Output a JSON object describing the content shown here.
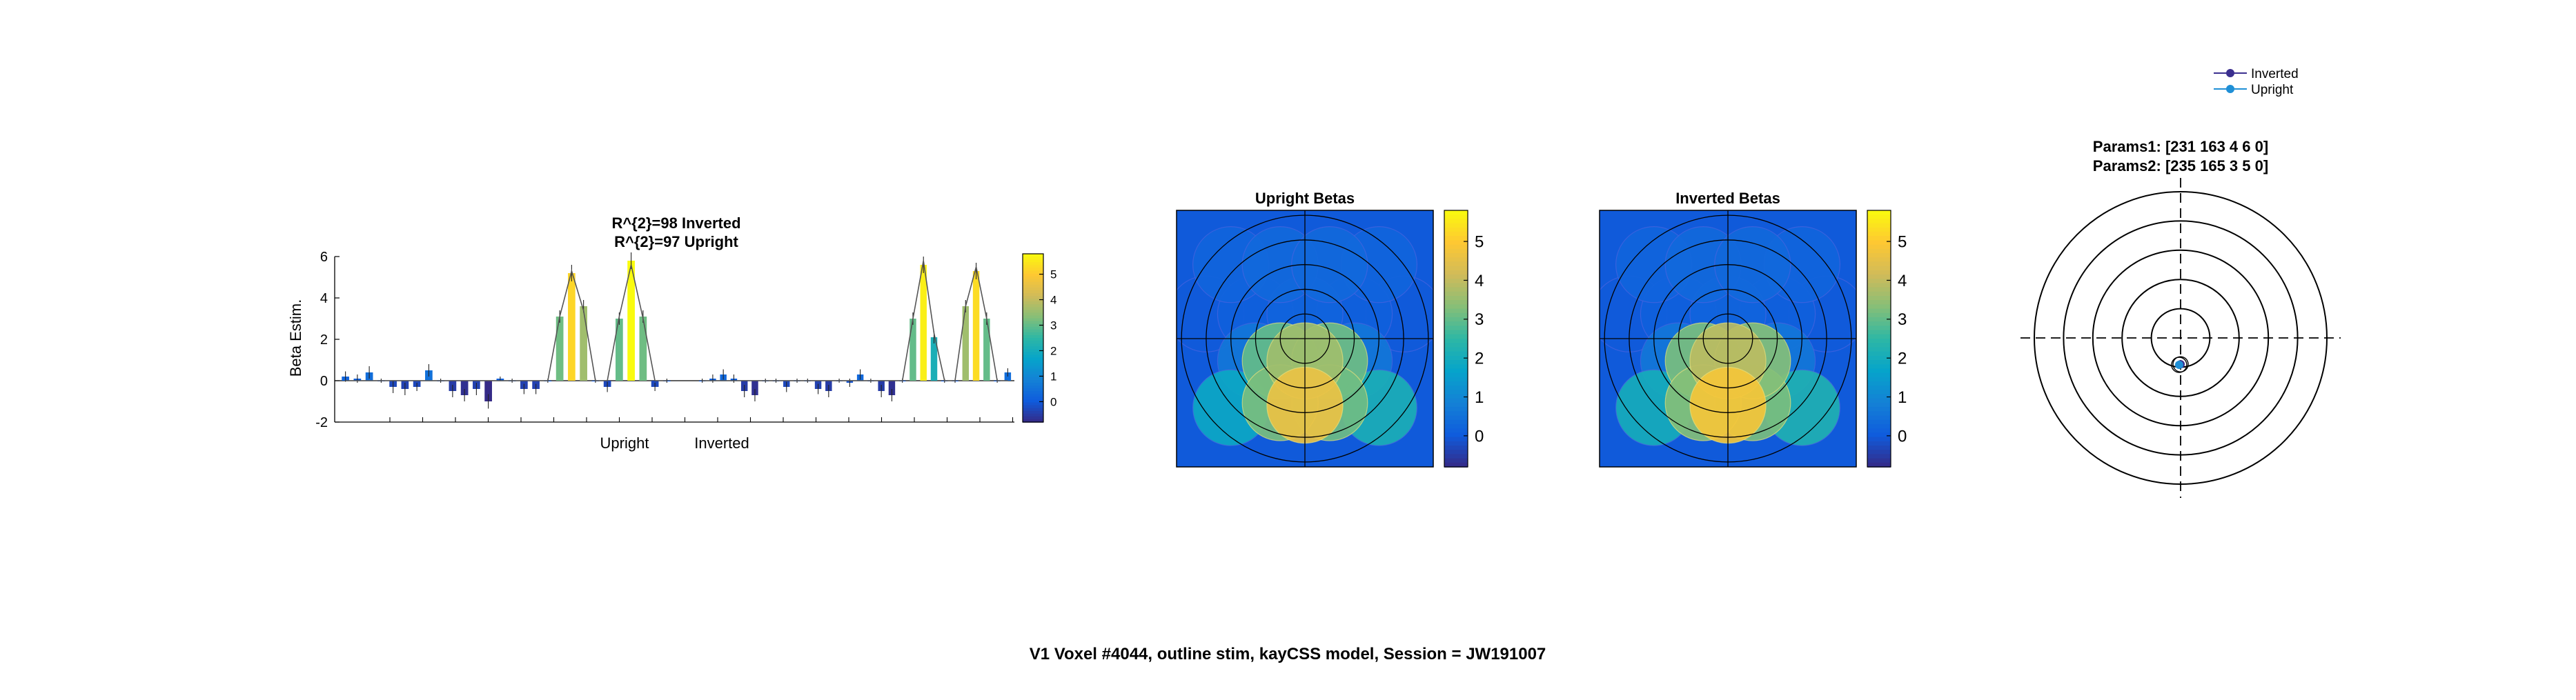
{
  "figure_title": "V1 Voxel #4044, outline stim, kayCSS model, Session = JW191007",
  "colors": {
    "background": "#ffffff",
    "inverted_marker": "#3b2f8f",
    "upright_marker": "#1f8fd6",
    "model_line": "#555555",
    "axis": "#000000"
  },
  "colormap": {
    "name": "parula",
    "stops": [
      "#352a87",
      "#0f5cdd",
      "#1481d6",
      "#06a4ca",
      "#2eb7a4",
      "#87bf77",
      "#d1bb59",
      "#fec832",
      "#f9fb0e"
    ]
  },
  "chart_data": [
    {
      "id": "beta-bars",
      "type": "bar",
      "title_lines": [
        "R^{2}=98 Inverted",
        "R^{2}=97 Upright"
      ],
      "xlabel_groups": [
        "Upright",
        "Inverted"
      ],
      "ylabel": "Beta Estim.",
      "ylim": [
        -2,
        6
      ],
      "yticks": [
        -2,
        0,
        2,
        4,
        6
      ],
      "colorbar_ticks": [
        0,
        1,
        2,
        3,
        4,
        5
      ],
      "colorbar_range": [
        -0.8,
        5.8
      ],
      "series": [
        {
          "name": "Upright",
          "values": [
            0.2,
            0.1,
            0.4,
            0.0,
            -0.3,
            -0.4,
            -0.3,
            0.5,
            0.0,
            -0.5,
            -0.7,
            -0.4,
            -1.0,
            0.1,
            0.0,
            -0.4,
            -0.4,
            0.0,
            3.1,
            5.2,
            3.6,
            0.0,
            -0.3,
            3.0,
            5.8,
            3.1,
            -0.3,
            0.0
          ],
          "error": [
            0.25,
            0.2,
            0.3,
            0.1,
            0.3,
            0.3,
            0.2,
            0.3,
            0.1,
            0.3,
            0.3,
            0.3,
            0.35,
            0.1,
            0.1,
            0.25,
            0.25,
            0.1,
            0.3,
            0.4,
            0.3,
            0.1,
            0.25,
            0.3,
            0.4,
            0.3,
            0.2,
            0.1
          ],
          "model": [
            0.0,
            0.0,
            0.0,
            0.0,
            0.0,
            0.0,
            0.0,
            0.0,
            0.0,
            0.0,
            0.0,
            0.0,
            0.0,
            0.0,
            0.0,
            0.0,
            0.0,
            0.0,
            3.1,
            5.3,
            3.4,
            0.0,
            0.0,
            3.1,
            5.6,
            3.0,
            0.0,
            0.0
          ]
        },
        {
          "name": "Inverted",
          "values": [
            0.0,
            0.1,
            0.3,
            0.1,
            -0.5,
            -0.7,
            0.0,
            0.0,
            -0.3,
            0.0,
            0.0,
            -0.4,
            -0.5,
            0.0,
            -0.1,
            0.3,
            0.0,
            -0.5,
            -0.7,
            0.0,
            3.0,
            5.6,
            2.1,
            0.0,
            0.0,
            3.6,
            5.3,
            3.0,
            0.0,
            0.4
          ],
          "error": [
            0.1,
            0.2,
            0.25,
            0.2,
            0.3,
            0.3,
            0.1,
            0.1,
            0.25,
            0.1,
            0.1,
            0.25,
            0.3,
            0.1,
            0.2,
            0.25,
            0.1,
            0.3,
            0.3,
            0.1,
            0.3,
            0.4,
            0.3,
            0.1,
            0.1,
            0.3,
            0.4,
            0.3,
            0.1,
            0.2
          ],
          "model": [
            0.0,
            0.0,
            0.0,
            0.0,
            0.0,
            0.0,
            0.0,
            0.0,
            0.0,
            0.0,
            0.0,
            0.0,
            0.0,
            0.0,
            0.0,
            0.0,
            0.0,
            0.0,
            0.0,
            0.0,
            3.0,
            5.8,
            2.3,
            0.0,
            0.0,
            3.6,
            5.5,
            3.0,
            0.0,
            0.0
          ]
        }
      ]
    },
    {
      "id": "upright-betas",
      "type": "heatmap",
      "title": "Upright Betas",
      "colorbar_ticks": [
        0,
        1,
        2,
        3,
        4,
        5
      ],
      "colorbar_range": [
        -0.8,
        5.8
      ],
      "background_value": 0.0,
      "disks": [
        {
          "col": -1.5,
          "row": -1.5,
          "value": 0.2
        },
        {
          "col": -0.5,
          "row": -1.5,
          "value": 0.3
        },
        {
          "col": 0.5,
          "row": -1.5,
          "value": 0.3
        },
        {
          "col": 1.5,
          "row": -1.5,
          "value": 0.2
        },
        {
          "col": -2.0,
          "row": -0.5,
          "value": 0.0
        },
        {
          "col": -1.0,
          "row": -0.5,
          "value": 0.1
        },
        {
          "col": 0.0,
          "row": -0.5,
          "value": 0.2
        },
        {
          "col": 1.0,
          "row": -0.5,
          "value": 0.1
        },
        {
          "col": 2.0,
          "row": -0.5,
          "value": 0.0
        },
        {
          "col": -1.0,
          "row": 0.45,
          "value": 0.6
        },
        {
          "col": 1.0,
          "row": 0.45,
          "value": 0.6
        },
        {
          "col": -1.5,
          "row": 1.4,
          "value": 1.8
        },
        {
          "col": 1.5,
          "row": 1.4,
          "value": 2.1
        },
        {
          "col": -0.5,
          "row": 0.45,
          "value": 3.0
        },
        {
          "col": 0.5,
          "row": 0.45,
          "value": 3.1
        },
        {
          "col": 0.0,
          "row": 0.45,
          "value": 3.6
        },
        {
          "col": -0.5,
          "row": 1.3,
          "value": 3.2
        },
        {
          "col": 0.5,
          "row": 1.3,
          "value": 3.1
        },
        {
          "col": 0.0,
          "row": 1.35,
          "value": 4.6
        }
      ]
    },
    {
      "id": "inverted-betas",
      "type": "heatmap",
      "title": "Inverted Betas",
      "colorbar_ticks": [
        0,
        1,
        2,
        3,
        4,
        5
      ],
      "colorbar_range": [
        -0.8,
        5.8
      ],
      "background_value": 0.0,
      "disks": [
        {
          "col": -1.5,
          "row": -1.5,
          "value": 0.2
        },
        {
          "col": -0.5,
          "row": -1.5,
          "value": 0.3
        },
        {
          "col": 0.5,
          "row": -1.5,
          "value": 0.3
        },
        {
          "col": 1.5,
          "row": -1.5,
          "value": 0.2
        },
        {
          "col": -2.0,
          "row": -0.5,
          "value": 0.0
        },
        {
          "col": -1.0,
          "row": -0.5,
          "value": 0.1
        },
        {
          "col": 0.0,
          "row": -0.5,
          "value": 0.2
        },
        {
          "col": 1.0,
          "row": -0.5,
          "value": 0.1
        },
        {
          "col": 2.0,
          "row": -0.5,
          "value": 0.0
        },
        {
          "col": -1.0,
          "row": 0.45,
          "value": 0.6
        },
        {
          "col": 1.0,
          "row": 0.45,
          "value": 0.6
        },
        {
          "col": -1.5,
          "row": 1.4,
          "value": 2.0
        },
        {
          "col": 1.5,
          "row": 1.4,
          "value": 2.2
        },
        {
          "col": -0.5,
          "row": 0.45,
          "value": 3.2
        },
        {
          "col": 0.5,
          "row": 0.45,
          "value": 3.3
        },
        {
          "col": 0.0,
          "row": 0.45,
          "value": 3.9
        },
        {
          "col": -0.5,
          "row": 1.3,
          "value": 3.3
        },
        {
          "col": 0.5,
          "row": 1.3,
          "value": 3.2
        },
        {
          "col": 0.0,
          "row": 1.35,
          "value": 4.8
        }
      ]
    },
    {
      "id": "prf-polar",
      "type": "scatter",
      "params_labels": [
        "Params1: [231   163     4     6     0]",
        "Params2: [235   165     3     5     0]"
      ],
      "legend": [
        "Inverted",
        "Upright"
      ],
      "rings": 5,
      "points": [
        {
          "name": "Inverted",
          "x": 0.0,
          "y": -0.9
        },
        {
          "name": "Upright",
          "x": -0.05,
          "y": -0.92
        }
      ]
    }
  ]
}
